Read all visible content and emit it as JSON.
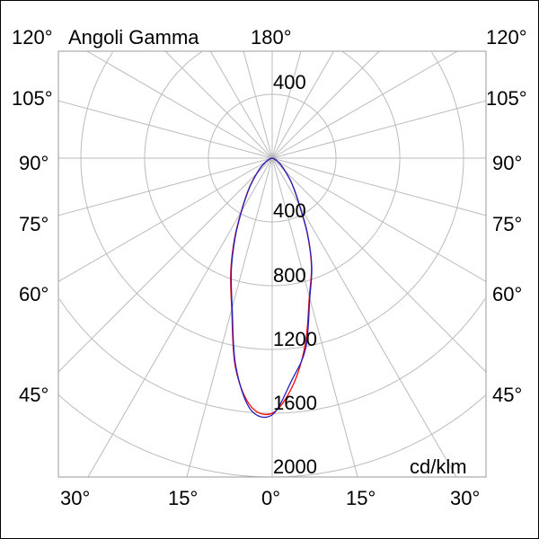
{
  "chart_data": {
    "type": "polar",
    "title": "Angoli Gamma",
    "unit_label": "cd/klm",
    "radial_ticks": [
      400,
      800,
      1200,
      1600,
      2000
    ],
    "radial_max": 2000,
    "top_ring_label": "400",
    "angle_labels": {
      "top": "180°",
      "left": [
        "120°",
        "105°",
        "90°",
        "75°",
        "60°",
        "45°"
      ],
      "right": [
        "120°",
        "105°",
        "90°",
        "75°",
        "60°",
        "45°"
      ],
      "bottom": [
        "30°",
        "15°",
        "0°",
        "15°",
        "30°"
      ]
    },
    "spoke_step_deg": 15,
    "grid": true,
    "gamma": [
      0,
      5,
      10,
      15,
      20,
      25,
      30,
      35,
      40,
      50,
      60,
      70,
      80,
      90
    ],
    "series": [
      {
        "color": "#ff0000",
        "left": [
          1600,
          1560,
          1330,
          980,
          760,
          560,
          390,
          280,
          200,
          100,
          45,
          15,
          4,
          0
        ],
        "right": [
          1600,
          1440,
          1190,
          900,
          720,
          520,
          340,
          240,
          170,
          80,
          35,
          12,
          3,
          0
        ]
      },
      {
        "color": "#2020c0",
        "left": [
          1610,
          1580,
          1320,
          970,
          750,
          550,
          385,
          275,
          195,
          98,
          44,
          15,
          4,
          0
        ],
        "right": [
          1600,
          1400,
          1210,
          910,
          725,
          525,
          345,
          243,
          172,
          82,
          36,
          12,
          3,
          0
        ]
      }
    ]
  }
}
